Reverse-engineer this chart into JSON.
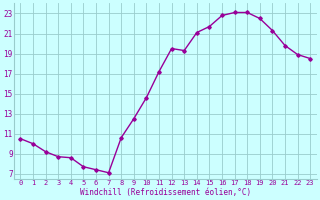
{
  "x": [
    0,
    1,
    2,
    3,
    4,
    5,
    6,
    7,
    8,
    9,
    10,
    11,
    12,
    13,
    14,
    15,
    16,
    17,
    18,
    19,
    20,
    21,
    22,
    23
  ],
  "y": [
    10.5,
    10.0,
    9.2,
    8.7,
    8.6,
    7.7,
    7.4,
    7.1,
    10.6,
    12.5,
    14.6,
    17.2,
    19.5,
    19.3,
    21.1,
    21.7,
    22.8,
    23.1,
    23.1,
    22.5,
    21.3,
    19.8,
    18.9,
    18.5
  ],
  "line_color": "#990099",
  "marker": "D",
  "marker_size": 1.8,
  "bg_color": "#ccffff",
  "grid_color": "#99cccc",
  "xlabel": "Windchill (Refroidissement éolien,°C)",
  "xlabel_color": "#990099",
  "tick_color": "#990099",
  "xlim": [
    -0.5,
    23.5
  ],
  "ylim": [
    6.5,
    24.0
  ],
  "yticks": [
    7,
    9,
    11,
    13,
    15,
    17,
    19,
    21,
    23
  ],
  "xticks": [
    0,
    1,
    2,
    3,
    4,
    5,
    6,
    7,
    8,
    9,
    10,
    11,
    12,
    13,
    14,
    15,
    16,
    17,
    18,
    19,
    20,
    21,
    22,
    23
  ],
  "line_width": 1.0
}
